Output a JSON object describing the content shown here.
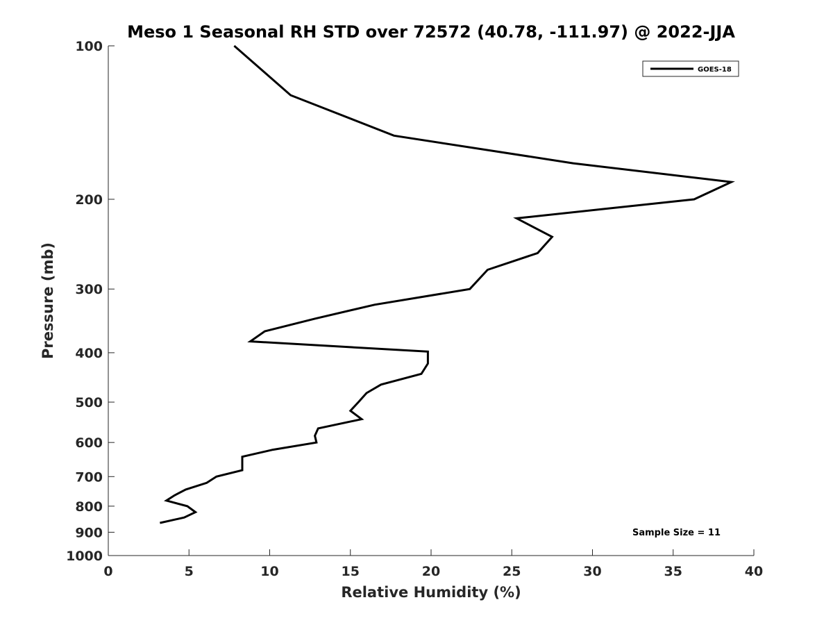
{
  "chart_data": {
    "type": "line",
    "title": "Meso 1 Seasonal RH STD over 72572 (40.78, -111.97) @ 2022-JJA",
    "xlabel": "Relative Humidity (%)",
    "ylabel": "Pressure (mb)",
    "xlim": [
      0,
      40
    ],
    "ylim": [
      100,
      1000
    ],
    "y_scale": "log",
    "y_reversed": true,
    "x_ticks": [
      0,
      5,
      10,
      15,
      20,
      25,
      30,
      35,
      40
    ],
    "y_ticks": [
      100,
      200,
      300,
      400,
      500,
      600,
      700,
      800,
      900,
      1000
    ],
    "grid": false,
    "legend_position": "top-right",
    "series": [
      {
        "name": "GOES-18",
        "color": "#000000",
        "points": [
          {
            "x": 7.8,
            "p": 100
          },
          {
            "x": 11.3,
            "p": 125
          },
          {
            "x": 17.7,
            "p": 150
          },
          {
            "x": 28.8,
            "p": 170
          },
          {
            "x": 38.6,
            "p": 185
          },
          {
            "x": 36.3,
            "p": 200
          },
          {
            "x": 25.3,
            "p": 218
          },
          {
            "x": 27.5,
            "p": 237
          },
          {
            "x": 26.6,
            "p": 255
          },
          {
            "x": 23.5,
            "p": 275
          },
          {
            "x": 22.4,
            "p": 300
          },
          {
            "x": 16.5,
            "p": 322
          },
          {
            "x": 12.8,
            "p": 343
          },
          {
            "x": 9.7,
            "p": 363
          },
          {
            "x": 8.8,
            "p": 380
          },
          {
            "x": 19.8,
            "p": 398
          },
          {
            "x": 19.8,
            "p": 420
          },
          {
            "x": 19.4,
            "p": 440
          },
          {
            "x": 16.9,
            "p": 462
          },
          {
            "x": 16.0,
            "p": 480
          },
          {
            "x": 15.5,
            "p": 500
          },
          {
            "x": 15.0,
            "p": 520
          },
          {
            "x": 15.7,
            "p": 540
          },
          {
            "x": 13.0,
            "p": 563
          },
          {
            "x": 12.8,
            "p": 582
          },
          {
            "x": 12.9,
            "p": 600
          },
          {
            "x": 10.2,
            "p": 620
          },
          {
            "x": 8.3,
            "p": 640
          },
          {
            "x": 8.3,
            "p": 662
          },
          {
            "x": 8.3,
            "p": 680
          },
          {
            "x": 6.7,
            "p": 700
          },
          {
            "x": 6.1,
            "p": 720
          },
          {
            "x": 4.8,
            "p": 742
          },
          {
            "x": 4.1,
            "p": 762
          },
          {
            "x": 3.6,
            "p": 780
          },
          {
            "x": 4.9,
            "p": 800
          },
          {
            "x": 5.4,
            "p": 822
          },
          {
            "x": 4.7,
            "p": 842
          },
          {
            "x": 3.2,
            "p": 863
          }
        ]
      }
    ],
    "annotations": [
      {
        "text": "Sample Size = 11",
        "position": "bottom-right"
      }
    ]
  }
}
